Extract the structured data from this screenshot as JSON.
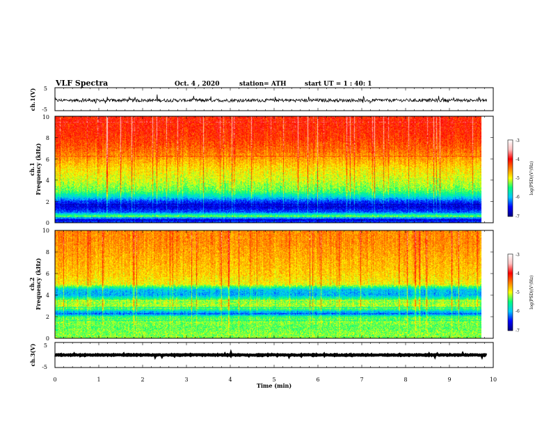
{
  "header": {
    "title": "VLF Spectra",
    "date": "Oct. 4 , 2020",
    "station": "station= ATH",
    "start": "start UT = 1 : 40: 1"
  },
  "chart_data": [
    {
      "type": "line",
      "name": "ch1-waveform",
      "ylabel": "ch.1(V)",
      "ylim": [
        -5,
        5
      ],
      "yticks": [
        "5",
        "-5"
      ],
      "xlim": [
        0,
        10
      ],
      "baseline_v": -0.5,
      "noise_amplitude_v": 1.4
    },
    {
      "type": "heatmap",
      "name": "ch1-spectrogram",
      "ylabel_1": "ch.1",
      "ylabel_2": "Frequency (kHz)",
      "ylim": [
        0,
        10
      ],
      "yticks": [
        "0",
        "2",
        "4",
        "6",
        "8",
        "10"
      ],
      "xlim": [
        0,
        9.85
      ],
      "colorbar": {
        "label": "log(PSD)(V²/Hz)",
        "range": [
          -7,
          -3
        ],
        "ticks": [
          "-3",
          "-4",
          "-5",
          "-6",
          "-7"
        ],
        "colors": [
          "#000080",
          "#0000ff",
          "#00c8ff",
          "#00ff80",
          "#ffff00",
          "#ff8000",
          "#ff0000",
          "#ffc0c0",
          "#ffffff"
        ]
      },
      "frequency_profile_log_psd": [
        [
          0.0,
          -6.2
        ],
        [
          0.3,
          -6.6
        ],
        [
          0.6,
          -5.0
        ],
        [
          1.0,
          -6.2
        ],
        [
          1.5,
          -6.6
        ],
        [
          2.0,
          -6.3
        ],
        [
          2.5,
          -5.6
        ],
        [
          3.0,
          -5.1
        ],
        [
          4.0,
          -4.8
        ],
        [
          5.0,
          -4.6
        ],
        [
          6.0,
          -4.3
        ],
        [
          7.0,
          -4.0
        ],
        [
          8.0,
          -3.8
        ],
        [
          9.0,
          -3.7
        ],
        [
          10.0,
          -3.7
        ]
      ]
    },
    {
      "type": "heatmap",
      "name": "ch2-spectrogram",
      "ylabel_1": "ch.2",
      "ylabel_2": "Frequency (kHz)",
      "ylim": [
        0,
        10
      ],
      "yticks": [
        "0",
        "2",
        "4",
        "6",
        "8",
        "10"
      ],
      "xlim": [
        0,
        9.85
      ],
      "colorbar": {
        "label": "log(PSD)(V²/Hz)",
        "range": [
          -7,
          -3
        ],
        "ticks": [
          "-3",
          "-4",
          "-5",
          "-6",
          "-7"
        ],
        "colors": [
          "#000080",
          "#0000ff",
          "#00c8ff",
          "#00ff80",
          "#ffff00",
          "#ff8000",
          "#ff0000",
          "#ffc0c0",
          "#ffffff"
        ]
      },
      "frequency_profile_log_psd": [
        [
          0.0,
          -5.0
        ],
        [
          0.5,
          -5.0
        ],
        [
          1.0,
          -5.1
        ],
        [
          1.5,
          -5.0
        ],
        [
          2.0,
          -5.2
        ],
        [
          2.3,
          -6.3
        ],
        [
          2.7,
          -5.2
        ],
        [
          3.0,
          -4.9
        ],
        [
          3.5,
          -5.0
        ],
        [
          4.0,
          -5.9
        ],
        [
          4.5,
          -5.8
        ],
        [
          5.0,
          -4.7
        ],
        [
          6.0,
          -4.5
        ],
        [
          7.0,
          -4.4
        ],
        [
          8.0,
          -4.3
        ],
        [
          9.0,
          -4.2
        ],
        [
          10.0,
          -4.2
        ]
      ]
    },
    {
      "type": "line",
      "name": "ch3-waveform",
      "ylabel": "ch.3(V)",
      "ylim": [
        -5,
        5
      ],
      "yticks": [
        "5",
        "-5"
      ],
      "xlim": [
        0,
        10
      ],
      "baseline_v": 0.0,
      "noise_amplitude_v": 0.3
    }
  ],
  "xaxis": {
    "label": "Time (min)",
    "ticks": [
      "0",
      "1",
      "2",
      "3",
      "4",
      "5",
      "6",
      "7",
      "8",
      "9",
      "10"
    ],
    "range": [
      0,
      10
    ]
  }
}
